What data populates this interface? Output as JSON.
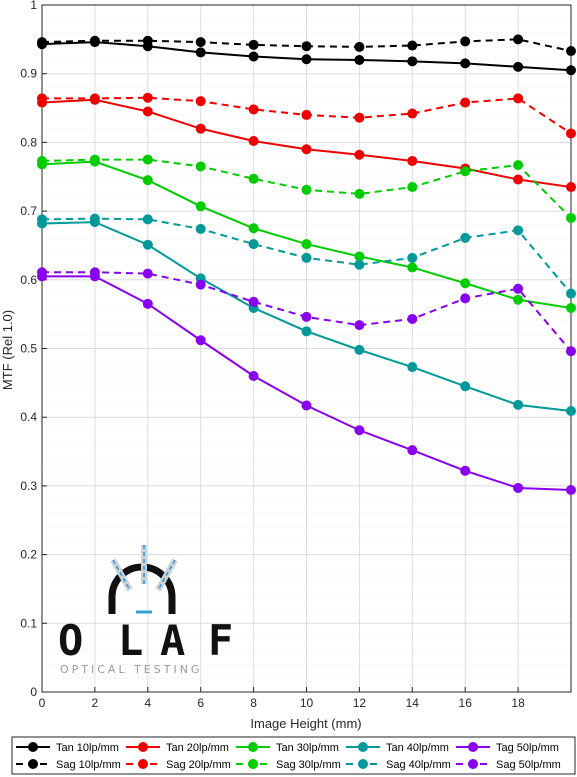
{
  "chart_data": {
    "type": "line",
    "xlabel": "Image Height (mm)",
    "ylabel": "MTF (Rel 1.0)",
    "xlim": [
      0,
      20
    ],
    "ylim": [
      0,
      1
    ],
    "xticks": [
      0,
      2,
      4,
      6,
      8,
      10,
      12,
      14,
      16,
      18
    ],
    "yticks": [
      0,
      0.1,
      0.2,
      0.3,
      0.4,
      0.5,
      0.6,
      0.7,
      0.8,
      0.9,
      1
    ],
    "grid": true,
    "legend_position": "bottom",
    "x": [
      0,
      2,
      4,
      6,
      8,
      10,
      12,
      14,
      16,
      18,
      20
    ],
    "series": [
      {
        "name": "Tan 10lp/mm",
        "style": "solid",
        "color": "#000000",
        "values": [
          0.943,
          0.946,
          0.94,
          0.931,
          0.925,
          0.921,
          0.92,
          0.918,
          0.915,
          0.91,
          0.905
        ]
      },
      {
        "name": "Sag 10lp/mm",
        "style": "dashed",
        "color": "#000000",
        "values": [
          0.946,
          0.948,
          0.948,
          0.946,
          0.942,
          0.94,
          0.939,
          0.941,
          0.947,
          0.95,
          0.933
        ]
      },
      {
        "name": "Tan 20lp/mm",
        "style": "solid",
        "color": "#ee0000",
        "values": [
          0.858,
          0.862,
          0.845,
          0.82,
          0.802,
          0.79,
          0.782,
          0.773,
          0.762,
          0.746,
          0.735
        ]
      },
      {
        "name": "Sag 20lp/mm",
        "style": "dashed",
        "color": "#ee0000",
        "values": [
          0.864,
          0.864,
          0.865,
          0.86,
          0.848,
          0.84,
          0.836,
          0.842,
          0.858,
          0.864,
          0.813
        ]
      },
      {
        "name": "Tan 30lp/mm",
        "style": "solid",
        "color": "#00cc00",
        "values": [
          0.768,
          0.772,
          0.745,
          0.707,
          0.675,
          0.652,
          0.634,
          0.618,
          0.595,
          0.571,
          0.559
        ]
      },
      {
        "name": "Sag 30lp/mm",
        "style": "dashed",
        "color": "#00cc00",
        "values": [
          0.773,
          0.775,
          0.775,
          0.765,
          0.747,
          0.731,
          0.725,
          0.735,
          0.758,
          0.767,
          0.69
        ]
      },
      {
        "name": "Tan 40lp/mm",
        "style": "solid",
        "color": "#00999a",
        "values": [
          0.682,
          0.684,
          0.651,
          0.602,
          0.559,
          0.525,
          0.498,
          0.473,
          0.445,
          0.418,
          0.409
        ]
      },
      {
        "name": "Sag 40lp/mm",
        "style": "dashed",
        "color": "#00999a",
        "values": [
          0.688,
          0.689,
          0.688,
          0.674,
          0.652,
          0.632,
          0.622,
          0.632,
          0.661,
          0.672,
          0.58
        ]
      },
      {
        "name": "Tag 50lp/mm",
        "style": "solid",
        "color": "#8800ee",
        "values": [
          0.605,
          0.605,
          0.565,
          0.512,
          0.46,
          0.417,
          0.381,
          0.352,
          0.322,
          0.297,
          0.294
        ]
      },
      {
        "name": "Sag 50lp/mm",
        "style": "dashed",
        "color": "#8800ee",
        "values": [
          0.611,
          0.611,
          0.609,
          0.593,
          0.568,
          0.546,
          0.534,
          0.543,
          0.573,
          0.587,
          0.496
        ]
      }
    ]
  },
  "logo": {
    "letters": [
      "O",
      "L",
      "A",
      "F"
    ],
    "tagline": "OPTICAL TESTING"
  }
}
